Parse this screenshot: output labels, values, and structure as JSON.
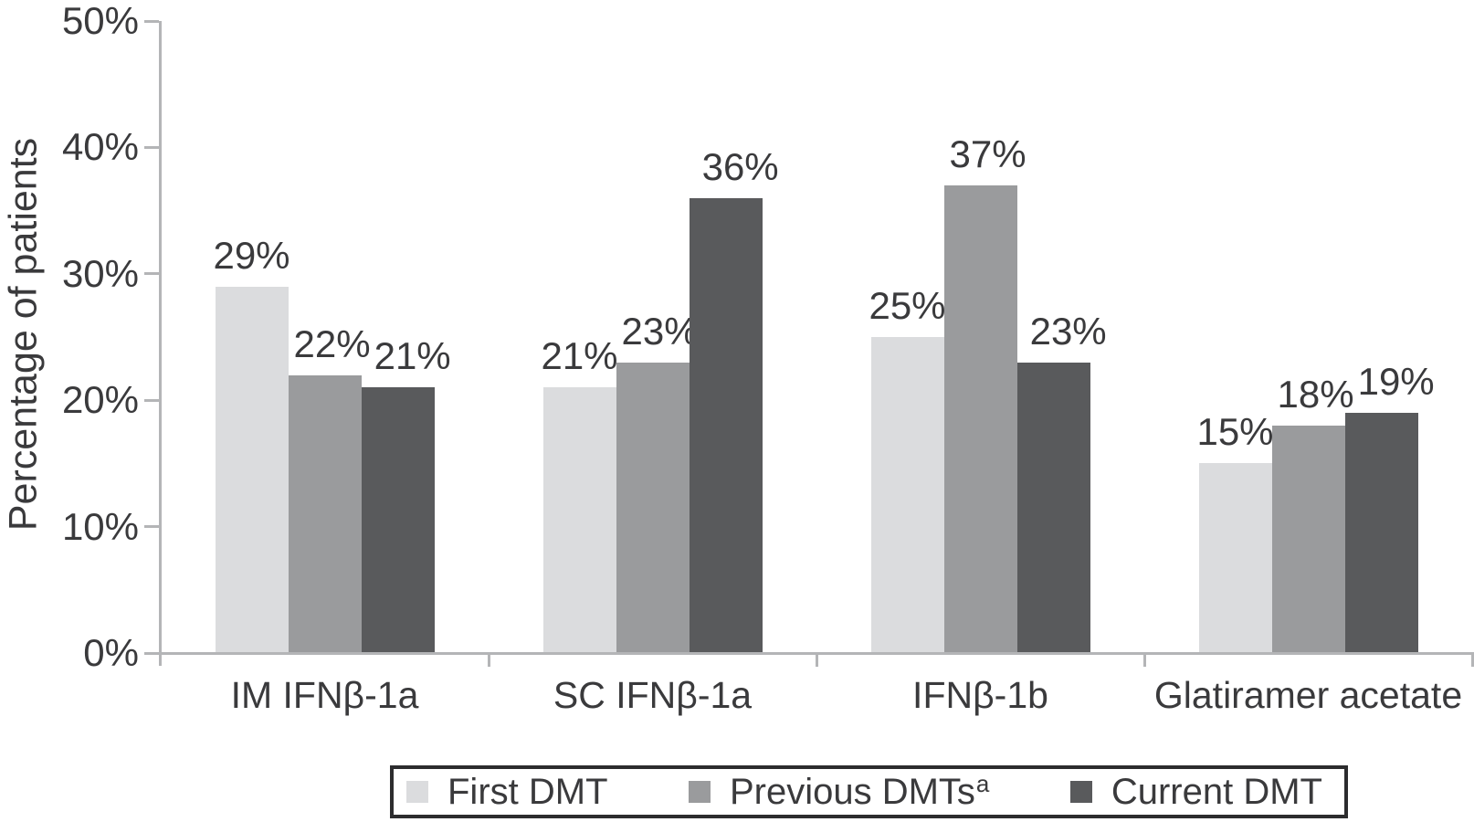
{
  "chart_data": {
    "type": "bar",
    "title": "",
    "xlabel": "",
    "ylabel": "Percentage of patients",
    "ylim": [
      0,
      50
    ],
    "ytick_labels": [
      "0%",
      "10%",
      "20%",
      "30%",
      "40%",
      "50%"
    ],
    "ytick_values": [
      0,
      10,
      20,
      30,
      40,
      50
    ],
    "grid": false,
    "legend_position": "bottom",
    "value_suffix": "%",
    "categories": [
      "IM IFNβ-1a",
      "SC IFNβ-1a",
      "IFNβ-1b",
      "Glatiramer acetate"
    ],
    "series": [
      {
        "name": "First DMT",
        "superscript": "",
        "color": "#dbdcde",
        "values": [
          29,
          21,
          25,
          15
        ]
      },
      {
        "name": "Previous DMTs",
        "superscript": "a",
        "color": "#9a9b9d",
        "values": [
          22,
          23,
          37,
          18
        ]
      },
      {
        "name": "Current DMT",
        "superscript": "",
        "color": "#595a5c",
        "values": [
          21,
          36,
          23,
          19
        ]
      }
    ]
  },
  "colors": {
    "axis": "#b4b5b7",
    "text": "#3a3a3c",
    "legend_border": "#2c2c2e",
    "background": "#ffffff"
  }
}
